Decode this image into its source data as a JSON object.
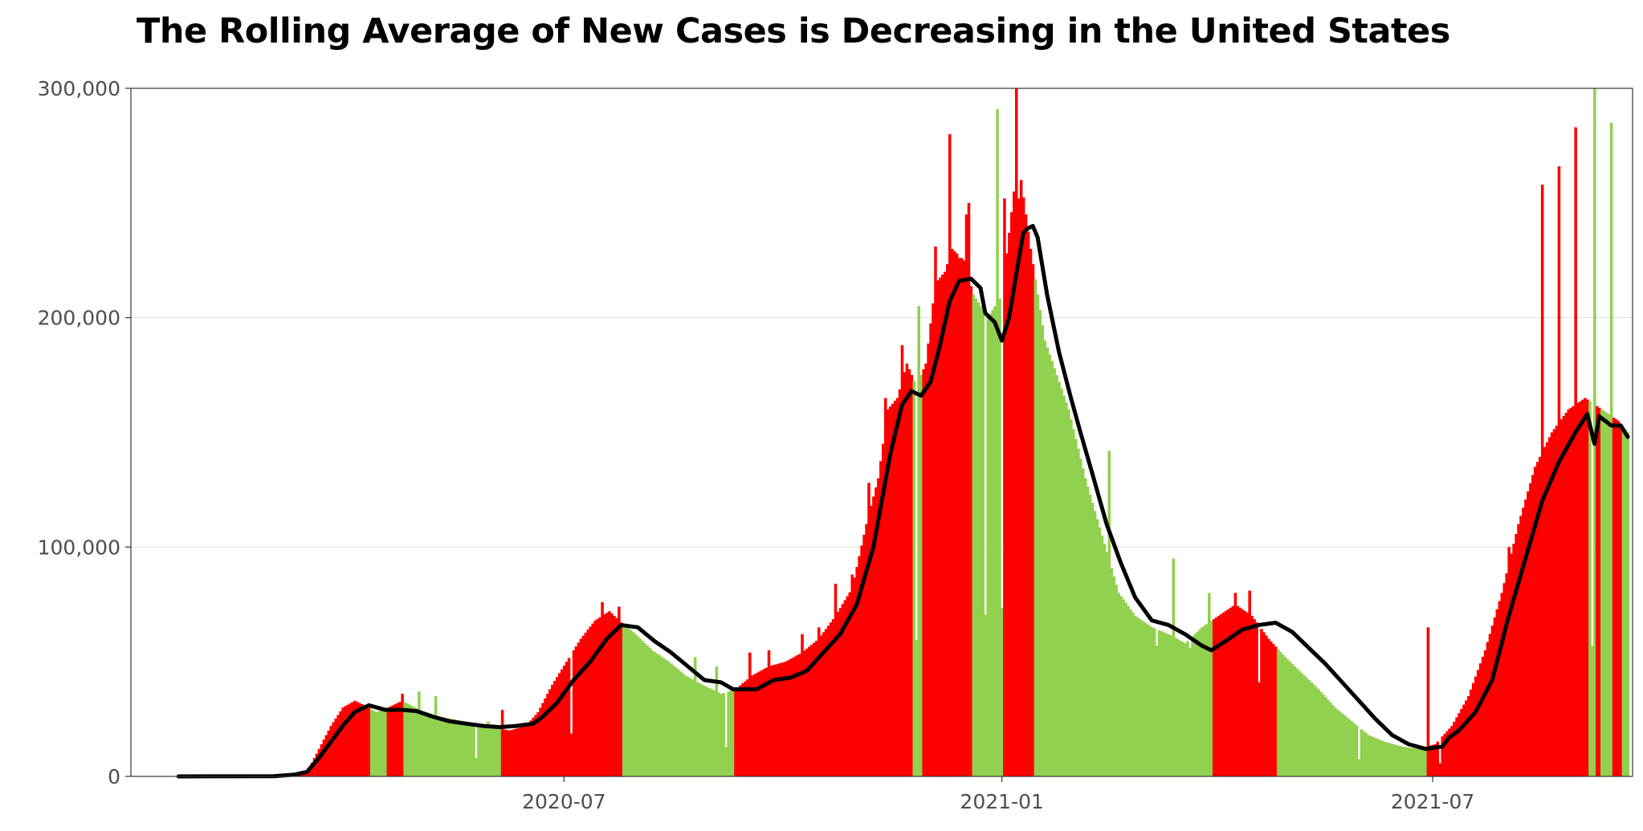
{
  "chart_data": {
    "type": "bar",
    "title": "The Rolling Average of New Cases is Decreasing in the United States",
    "xlabel": "",
    "ylabel": "",
    "x_start": "2020-01-21",
    "x_end": "2021-09-21",
    "ylim": [
      0,
      300000
    ],
    "y_ticks": [
      0,
      100000,
      200000,
      300000
    ],
    "y_tick_labels": [
      "0",
      "100,000",
      "200,000",
      "300,000"
    ],
    "x_ticks": [
      "2020-07-01",
      "2021-01-01",
      "2021-07-01"
    ],
    "x_tick_labels": [
      "2020-07",
      "2021-01",
      "2021-07"
    ],
    "grid": "horizontal",
    "legend": "none",
    "bar_colors": {
      "increasing": "#ff0000",
      "decreasing": "#92d050"
    },
    "line_color": "#000000",
    "series": [
      {
        "kind": "bars",
        "interpolation": "linear",
        "values": [
          [
            "2020-01-21",
            0
          ],
          [
            "2020-03-01",
            50
          ],
          [
            "2020-03-10",
            500
          ],
          [
            "2020-03-15",
            2000
          ],
          [
            "2020-03-20",
            12000
          ],
          [
            "2020-03-25",
            22000
          ],
          [
            "2020-03-30",
            30000
          ],
          [
            "2020-04-04",
            33000
          ],
          [
            "2020-04-08",
            31000
          ],
          [
            "2020-04-13",
            28000
          ],
          [
            "2020-04-18",
            30000
          ],
          [
            "2020-04-24",
            33000
          ],
          [
            "2020-05-01",
            29000
          ],
          [
            "2020-05-10",
            26000
          ],
          [
            "2020-05-20",
            24000
          ],
          [
            "2020-05-30",
            22000
          ],
          [
            "2020-06-08",
            20000
          ],
          [
            "2020-06-15",
            22000
          ],
          [
            "2020-06-20",
            28000
          ],
          [
            "2020-06-26",
            40000
          ],
          [
            "2020-07-02",
            50000
          ],
          [
            "2020-07-08",
            60000
          ],
          [
            "2020-07-14",
            68000
          ],
          [
            "2020-07-20",
            72000
          ],
          [
            "2020-07-24",
            68000
          ],
          [
            "2020-07-31",
            62000
          ],
          [
            "2020-08-07",
            55000
          ],
          [
            "2020-08-14",
            50000
          ],
          [
            "2020-08-21",
            44000
          ],
          [
            "2020-08-28",
            40000
          ],
          [
            "2020-09-05",
            36000
          ],
          [
            "2020-09-11",
            38000
          ],
          [
            "2020-09-18",
            44000
          ],
          [
            "2020-09-25",
            48000
          ],
          [
            "2020-10-02",
            50000
          ],
          [
            "2020-10-09",
            54000
          ],
          [
            "2020-10-16",
            60000
          ],
          [
            "2020-10-23",
            70000
          ],
          [
            "2020-10-30",
            82000
          ],
          [
            "2020-11-05",
            110000
          ],
          [
            "2020-11-10",
            130000
          ],
          [
            "2020-11-14",
            160000
          ],
          [
            "2020-11-18",
            165000
          ],
          [
            "2020-11-22",
            180000
          ],
          [
            "2020-11-26",
            170000
          ],
          [
            "2020-11-30",
            180000
          ],
          [
            "2020-12-04",
            215000
          ],
          [
            "2020-12-08",
            220000
          ],
          [
            "2020-12-11",
            230000
          ],
          [
            "2020-12-16",
            225000
          ],
          [
            "2020-12-20",
            210000
          ],
          [
            "2020-12-26",
            200000
          ],
          [
            "2021-01-01",
            210000
          ],
          [
            "2021-01-06",
            255000
          ],
          [
            "2021-01-09",
            260000
          ],
          [
            "2021-01-13",
            230000
          ],
          [
            "2021-01-19",
            190000
          ],
          [
            "2021-01-24",
            175000
          ],
          [
            "2021-01-29",
            160000
          ],
          [
            "2021-02-05",
            130000
          ],
          [
            "2021-02-12",
            105000
          ],
          [
            "2021-02-19",
            80000
          ],
          [
            "2021-02-26",
            70000
          ],
          [
            "2021-03-05",
            65000
          ],
          [
            "2021-03-12",
            62000
          ],
          [
            "2021-03-19",
            58000
          ],
          [
            "2021-03-26",
            65000
          ],
          [
            "2021-04-02",
            70000
          ],
          [
            "2021-04-09",
            75000
          ],
          [
            "2021-04-16",
            70000
          ],
          [
            "2021-04-23",
            60000
          ],
          [
            "2021-04-30",
            52000
          ],
          [
            "2021-05-07",
            45000
          ],
          [
            "2021-05-14",
            38000
          ],
          [
            "2021-05-21",
            30000
          ],
          [
            "2021-05-28",
            24000
          ],
          [
            "2021-06-04",
            18000
          ],
          [
            "2021-06-11",
            15000
          ],
          [
            "2021-06-18",
            13000
          ],
          [
            "2021-06-25",
            12000
          ],
          [
            "2021-07-02",
            14000
          ],
          [
            "2021-07-09",
            22000
          ],
          [
            "2021-07-16",
            35000
          ],
          [
            "2021-07-23",
            55000
          ],
          [
            "2021-07-30",
            80000
          ],
          [
            "2021-08-06",
            110000
          ],
          [
            "2021-08-13",
            135000
          ],
          [
            "2021-08-20",
            150000
          ],
          [
            "2021-08-27",
            160000
          ],
          [
            "2021-09-03",
            165000
          ],
          [
            "2021-09-10",
            160000
          ],
          [
            "2021-09-17",
            155000
          ],
          [
            "2021-09-21",
            150000
          ]
        ],
        "spikes": [
          [
            "2020-04-24",
            36000
          ],
          [
            "2020-05-01",
            37000
          ],
          [
            "2020-05-08",
            35000
          ],
          [
            "2020-05-30",
            24000
          ],
          [
            "2020-06-05",
            29000
          ],
          [
            "2020-07-17",
            76000
          ],
          [
            "2020-07-24",
            74000
          ],
          [
            "2020-08-25",
            52000
          ],
          [
            "2020-09-03",
            48000
          ],
          [
            "2020-09-17",
            54000
          ],
          [
            "2020-09-25",
            55000
          ],
          [
            "2020-10-09",
            62000
          ],
          [
            "2020-10-16",
            65000
          ],
          [
            "2020-10-23",
            84000
          ],
          [
            "2020-10-30",
            88000
          ],
          [
            "2020-11-06",
            128000
          ],
          [
            "2020-11-13",
            165000
          ],
          [
            "2020-11-20",
            188000
          ],
          [
            "2020-11-27",
            205000
          ],
          [
            "2020-12-04",
            231000
          ],
          [
            "2020-12-10",
            280000
          ],
          [
            "2020-12-14",
            226000
          ],
          [
            "2020-12-17",
            245000
          ],
          [
            "2020-12-18",
            250000
          ],
          [
            "2020-12-30",
            291000
          ],
          [
            "2021-01-02",
            252000
          ],
          [
            "2021-01-07",
            300000
          ],
          [
            "2021-01-08",
            252000
          ],
          [
            "2021-02-15",
            142000
          ],
          [
            "2021-03-07",
            57000
          ],
          [
            "2021-03-14",
            95000
          ],
          [
            "2021-03-21",
            56000
          ],
          [
            "2021-03-29",
            80000
          ],
          [
            "2021-04-09",
            80000
          ],
          [
            "2021-04-15",
            81000
          ],
          [
            "2021-04-19",
            41000
          ],
          [
            "2021-06-29",
            65000
          ],
          [
            "2021-08-02",
            100000
          ],
          [
            "2021-08-16",
            258000
          ],
          [
            "2021-08-23",
            266000
          ],
          [
            "2021-08-30",
            283000
          ],
          [
            "2021-09-07",
            300000
          ],
          [
            "2021-09-14",
            285000
          ]
        ],
        "dips": [
          "2020-05-25",
          "2020-07-04",
          "2020-09-07",
          "2020-11-26",
          "2020-12-25",
          "2021-01-01",
          "2021-05-31",
          "2021-07-04",
          "2021-09-06"
        ]
      },
      {
        "kind": "line",
        "interpolation": "linear",
        "values": [
          [
            "2020-01-21",
            0
          ],
          [
            "2020-03-01",
            100
          ],
          [
            "2020-03-10",
            800
          ],
          [
            "2020-03-15",
            2000
          ],
          [
            "2020-03-20",
            8000
          ],
          [
            "2020-03-25",
            15000
          ],
          [
            "2020-03-30",
            22000
          ],
          [
            "2020-04-04",
            28000
          ],
          [
            "2020-04-10",
            31000
          ],
          [
            "2020-04-17",
            29000
          ],
          [
            "2020-04-24",
            29000
          ],
          [
            "2020-04-30",
            28500
          ],
          [
            "2020-05-07",
            26000
          ],
          [
            "2020-05-14",
            24000
          ],
          [
            "2020-05-21",
            23000
          ],
          [
            "2020-05-28",
            22000
          ],
          [
            "2020-06-04",
            21500
          ],
          [
            "2020-06-11",
            22000
          ],
          [
            "2020-06-18",
            23000
          ],
          [
            "2020-06-22",
            26000
          ],
          [
            "2020-06-28",
            32000
          ],
          [
            "2020-07-05",
            42000
          ],
          [
            "2020-07-12",
            50000
          ],
          [
            "2020-07-19",
            60000
          ],
          [
            "2020-07-25",
            66000
          ],
          [
            "2020-08-01",
            65000
          ],
          [
            "2020-08-08",
            59000
          ],
          [
            "2020-08-15",
            54000
          ],
          [
            "2020-08-22",
            48000
          ],
          [
            "2020-08-29",
            42000
          ],
          [
            "2020-09-05",
            41000
          ],
          [
            "2020-09-10",
            38000
          ],
          [
            "2020-09-20",
            38000
          ],
          [
            "2020-09-27",
            42000
          ],
          [
            "2020-10-04",
            43000
          ],
          [
            "2020-10-11",
            46000
          ],
          [
            "2020-10-18",
            54000
          ],
          [
            "2020-10-25",
            62000
          ],
          [
            "2020-11-01",
            75000
          ],
          [
            "2020-11-08",
            100000
          ],
          [
            "2020-11-15",
            140000
          ],
          [
            "2020-11-20",
            162000
          ],
          [
            "2020-11-24",
            168000
          ],
          [
            "2020-11-28",
            166000
          ],
          [
            "2020-12-02",
            172000
          ],
          [
            "2020-12-06",
            188000
          ],
          [
            "2020-12-10",
            207000
          ],
          [
            "2020-12-14",
            216000
          ],
          [
            "2020-12-19",
            217000
          ],
          [
            "2020-12-23",
            213000
          ],
          [
            "2020-12-25",
            202000
          ],
          [
            "2020-12-29",
            198000
          ],
          [
            "2021-01-01",
            190000
          ],
          [
            "2021-01-04",
            200000
          ],
          [
            "2021-01-08",
            225000
          ],
          [
            "2021-01-10",
            237000
          ],
          [
            "2021-01-12",
            239000
          ],
          [
            "2021-01-14",
            240000
          ],
          [
            "2021-01-16",
            235000
          ],
          [
            "2021-01-20",
            210000
          ],
          [
            "2021-01-25",
            185000
          ],
          [
            "2021-01-30",
            165000
          ],
          [
            "2021-02-03",
            150000
          ],
          [
            "2021-02-08",
            132000
          ],
          [
            "2021-02-14",
            110000
          ],
          [
            "2021-02-20",
            93000
          ],
          [
            "2021-02-26",
            78000
          ],
          [
            "2021-03-05",
            68000
          ],
          [
            "2021-03-12",
            66000
          ],
          [
            "2021-03-19",
            62000
          ],
          [
            "2021-03-26",
            57000
          ],
          [
            "2021-03-30",
            55000
          ],
          [
            "2021-04-05",
            59000
          ],
          [
            "2021-04-12",
            64000
          ],
          [
            "2021-04-19",
            66000
          ],
          [
            "2021-04-26",
            67000
          ],
          [
            "2021-05-03",
            63000
          ],
          [
            "2021-05-10",
            56000
          ],
          [
            "2021-05-17",
            49000
          ],
          [
            "2021-05-24",
            41000
          ],
          [
            "2021-05-31",
            33000
          ],
          [
            "2021-06-07",
            25000
          ],
          [
            "2021-06-14",
            18000
          ],
          [
            "2021-06-21",
            14000
          ],
          [
            "2021-06-28",
            12000
          ],
          [
            "2021-07-05",
            13000
          ],
          [
            "2021-07-08",
            17000
          ],
          [
            "2021-07-12",
            20000
          ],
          [
            "2021-07-19",
            28000
          ],
          [
            "2021-07-26",
            42000
          ],
          [
            "2021-08-02",
            70000
          ],
          [
            "2021-08-09",
            95000
          ],
          [
            "2021-08-16",
            120000
          ],
          [
            "2021-08-23",
            137000
          ],
          [
            "2021-08-30",
            150000
          ],
          [
            "2021-09-04",
            158000
          ],
          [
            "2021-09-07",
            145000
          ],
          [
            "2021-09-09",
            157000
          ],
          [
            "2021-09-14",
            153000
          ],
          [
            "2021-09-18",
            153000
          ],
          [
            "2021-09-21",
            148000
          ]
        ]
      }
    ]
  }
}
